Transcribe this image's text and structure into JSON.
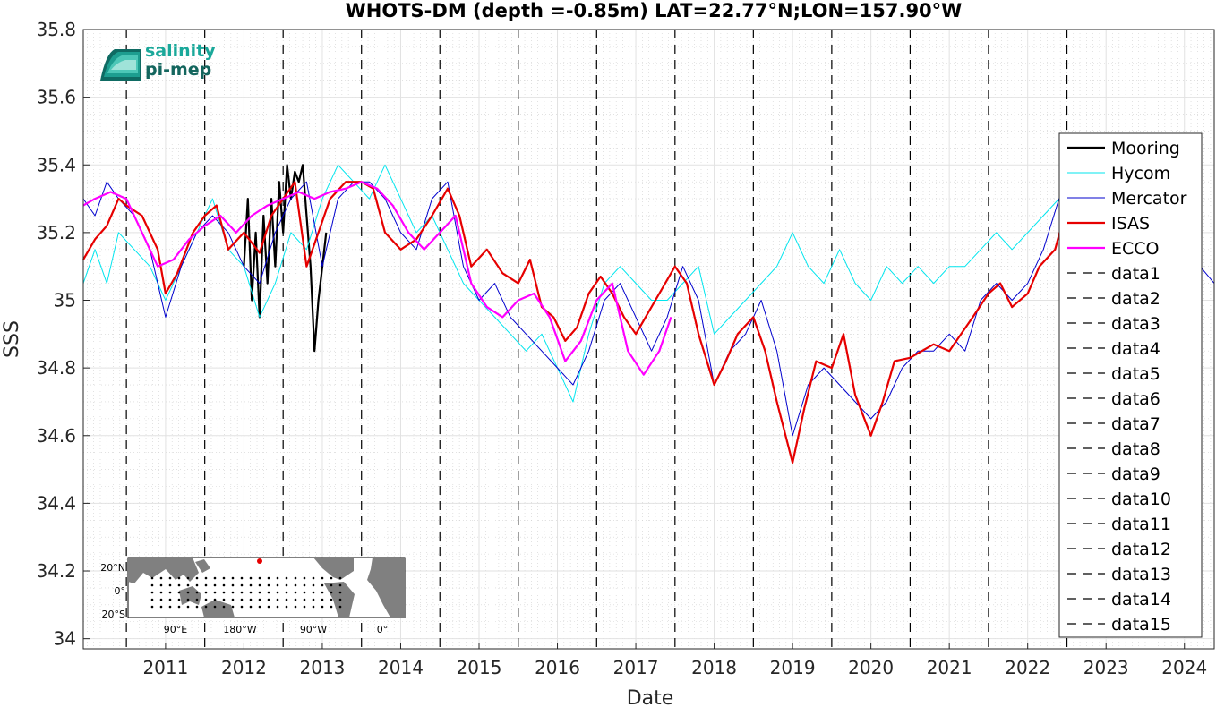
{
  "chart_data": {
    "type": "line",
    "title": "WHOTS-DM (depth =-0.85m) LAT=22.77°N;LON=157.90°W",
    "xlabel": "Date",
    "ylabel": "SSS",
    "xlim": [
      2010.45,
      2024.88
    ],
    "ylim": [
      33.97,
      35.8
    ],
    "yticks": [
      "34",
      "34.2",
      "34.4",
      "34.6",
      "34.8",
      "35",
      "35.2",
      "35.4",
      "35.6",
      "35.8"
    ],
    "xticks": [
      "2011",
      "2012",
      "2013",
      "2014",
      "2015",
      "2016",
      "2017",
      "2018",
      "2019",
      "2020",
      "2021",
      "2022",
      "2023",
      "2024"
    ],
    "grid": true,
    "legend_position": "right",
    "vlines": [
      2011.0,
      2012.0,
      2013.0,
      2014.0,
      2015.0,
      2016.0,
      2017.0,
      2018.0,
      2019.0,
      2020.0,
      2021.0,
      2022.0,
      2023.0,
      2023.0,
      2023.0
    ],
    "series": [
      {
        "name": "Mooring",
        "color": "#000000",
        "width": 2.2,
        "x": [
          2012.5,
          2012.55,
          2012.6,
          2012.65,
          2012.7,
          2012.75,
          2012.8,
          2012.85,
          2012.9,
          2012.95,
          2013.0,
          2013.05,
          2013.1,
          2013.15,
          2013.2,
          2013.25,
          2013.3,
          2013.35,
          2013.4,
          2013.45,
          2013.5,
          2013.55
        ],
        "y": [
          35.1,
          35.3,
          35.0,
          35.2,
          34.95,
          35.25,
          35.05,
          35.3,
          35.1,
          35.35,
          35.2,
          35.4,
          35.3,
          35.38,
          35.35,
          35.4,
          35.25,
          35.1,
          34.85,
          35.0,
          35.1,
          35.2
        ]
      },
      {
        "name": "Hycom",
        "color": "#00e5ee",
        "width": 1,
        "x": [
          2010.45,
          2010.6,
          2010.75,
          2010.9,
          2011.1,
          2011.3,
          2011.5,
          2011.7,
          2011.9,
          2012.1,
          2012.3,
          2012.5,
          2012.7,
          2012.9,
          2013.1,
          2013.3,
          2013.5,
          2013.7,
          2013.9,
          2014.1,
          2014.3,
          2014.5,
          2014.7,
          2014.9,
          2015.1,
          2015.3,
          2015.5,
          2015.7,
          2015.9,
          2016.1,
          2016.3,
          2016.5,
          2016.7,
          2016.9,
          2017.1,
          2017.3,
          2017.5,
          2017.7,
          2017.9,
          2018.1,
          2018.3,
          2018.5,
          2018.7,
          2018.9,
          2019.1,
          2019.3,
          2019.5,
          2019.7,
          2019.9,
          2020.1,
          2020.3,
          2020.5,
          2020.7,
          2020.9,
          2021.1,
          2021.3,
          2021.5,
          2021.7,
          2021.9,
          2022.1,
          2022.3,
          2022.5,
          2022.7,
          2022.9
        ],
        "y": [
          35.05,
          35.15,
          35.05,
          35.2,
          35.15,
          35.1,
          35.0,
          35.1,
          35.2,
          35.3,
          35.15,
          35.1,
          34.95,
          35.05,
          35.2,
          35.15,
          35.3,
          35.4,
          35.35,
          35.3,
          35.4,
          35.3,
          35.2,
          35.25,
          35.15,
          35.05,
          35.0,
          34.95,
          34.9,
          34.85,
          34.9,
          34.8,
          34.7,
          34.9,
          35.05,
          35.1,
          35.05,
          35.0,
          35.0,
          35.05,
          35.1,
          34.9,
          34.95,
          35.0,
          35.05,
          35.1,
          35.2,
          35.1,
          35.05,
          35.15,
          35.05,
          35.0,
          35.1,
          35.05,
          35.1,
          35.05,
          35.1,
          35.1,
          35.15,
          35.2,
          35.15,
          35.2,
          35.25,
          35.3
        ]
      },
      {
        "name": "Mercator",
        "color": "#0000cd",
        "width": 1,
        "x": [
          2010.45,
          2010.6,
          2010.75,
          2010.9,
          2011.1,
          2011.3,
          2011.5,
          2011.7,
          2011.9,
          2012.1,
          2012.3,
          2012.5,
          2012.7,
          2012.9,
          2013.1,
          2013.3,
          2013.5,
          2013.7,
          2013.9,
          2014.1,
          2014.3,
          2014.5,
          2014.7,
          2014.9,
          2015.1,
          2015.3,
          2015.5,
          2015.7,
          2015.9,
          2016.1,
          2016.3,
          2016.5,
          2016.7,
          2016.9,
          2017.1,
          2017.3,
          2017.5,
          2017.7,
          2017.9,
          2018.1,
          2018.3,
          2018.5,
          2018.7,
          2018.9,
          2019.1,
          2019.3,
          2019.5,
          2019.7,
          2019.9,
          2020.1,
          2020.3,
          2020.5,
          2020.7,
          2020.9,
          2021.1,
          2021.3,
          2021.5,
          2021.7,
          2021.9,
          2022.1,
          2022.3,
          2022.5,
          2022.7,
          2022.9,
          2023.1,
          2023.3,
          2023.5,
          2023.7,
          2023.9,
          2024.1,
          2024.3,
          2024.5,
          2024.7,
          2024.88
        ],
        "y": [
          35.3,
          35.25,
          35.35,
          35.3,
          35.25,
          35.15,
          34.95,
          35.1,
          35.2,
          35.25,
          35.2,
          35.1,
          35.05,
          35.2,
          35.3,
          35.35,
          35.1,
          35.3,
          35.35,
          35.35,
          35.3,
          35.2,
          35.15,
          35.3,
          35.35,
          35.1,
          35.0,
          35.05,
          34.95,
          34.9,
          34.85,
          34.8,
          34.75,
          34.85,
          35.0,
          35.05,
          34.95,
          34.85,
          34.95,
          35.1,
          35.0,
          34.75,
          34.85,
          34.9,
          35.0,
          34.85,
          34.6,
          34.75,
          34.8,
          34.75,
          34.7,
          34.65,
          34.7,
          34.8,
          34.85,
          34.85,
          34.9,
          34.85,
          35.0,
          35.05,
          35.0,
          35.05,
          35.15,
          35.3,
          35.4,
          35.3,
          35.2,
          35.1,
          35.15,
          35.2,
          35.25,
          35.2,
          35.1,
          35.05
        ]
      },
      {
        "name": "ISAS",
        "color": "#e60000",
        "width": 2.2,
        "x": [
          2010.45,
          2010.6,
          2010.75,
          2010.9,
          2011.0,
          2011.2,
          2011.4,
          2011.5,
          2011.65,
          2011.85,
          2012.0,
          2012.15,
          2012.3,
          2012.5,
          2012.7,
          2012.85,
          2013.0,
          2013.15,
          2013.3,
          2013.45,
          2013.6,
          2013.8,
          2014.0,
          2014.15,
          2014.3,
          2014.5,
          2014.7,
          2014.9,
          2015.1,
          2015.25,
          2015.4,
          2015.6,
          2015.8,
          2016.0,
          2016.15,
          2016.3,
          2016.45,
          2016.6,
          2016.75,
          2016.9,
          2017.05,
          2017.2,
          2017.35,
          2017.5,
          2017.65,
          2017.8,
          2018.0,
          2018.15,
          2018.3,
          2018.5,
          2018.65,
          2018.8,
          2019.0,
          2019.15,
          2019.3,
          2019.5,
          2019.65,
          2019.8,
          2020.0,
          2020.15,
          2020.3,
          2020.5,
          2020.65,
          2020.8,
          2021.0,
          2021.15,
          2021.3,
          2021.5,
          2021.65,
          2021.8,
          2022.0,
          2022.15,
          2022.3,
          2022.5,
          2022.65,
          2022.85,
          2023.0
        ],
        "y": [
          35.12,
          35.18,
          35.22,
          35.3,
          35.28,
          35.25,
          35.15,
          35.02,
          35.08,
          35.2,
          35.25,
          35.28,
          35.15,
          35.2,
          35.14,
          35.25,
          35.3,
          35.35,
          35.1,
          35.2,
          35.3,
          35.35,
          35.35,
          35.33,
          35.2,
          35.15,
          35.18,
          35.25,
          35.33,
          35.25,
          35.1,
          35.15,
          35.08,
          35.05,
          35.12,
          34.98,
          34.95,
          34.88,
          34.92,
          35.02,
          35.07,
          35.02,
          34.95,
          34.9,
          34.96,
          35.02,
          35.1,
          35.05,
          34.9,
          34.75,
          34.82,
          34.9,
          34.95,
          34.85,
          34.7,
          34.52,
          34.68,
          34.82,
          34.8,
          34.9,
          34.72,
          34.6,
          34.7,
          34.82,
          34.83,
          34.85,
          34.87,
          34.85,
          34.9,
          34.95,
          35.02,
          35.05,
          34.98,
          35.02,
          35.1,
          35.15,
          35.28
        ]
      },
      {
        "name": "ECCO",
        "color": "#ff00ff",
        "width": 2.2,
        "x": [
          2010.45,
          2010.6,
          2010.8,
          2011.0,
          2011.2,
          2011.4,
          2011.6,
          2011.8,
          2012.0,
          2012.2,
          2012.4,
          2012.6,
          2012.8,
          2013.0,
          2013.2,
          2013.4,
          2013.6,
          2013.8,
          2014.0,
          2014.2,
          2014.4,
          2014.6,
          2014.8,
          2015.0,
          2015.2,
          2015.4,
          2015.6,
          2015.8,
          2016.0,
          2016.2,
          2016.4,
          2016.6,
          2016.8,
          2017.0,
          2017.2,
          2017.4,
          2017.6,
          2017.8,
          2017.95
        ],
        "y": [
          35.28,
          35.3,
          35.32,
          35.3,
          35.2,
          35.1,
          35.12,
          35.18,
          35.22,
          35.25,
          35.2,
          35.25,
          35.28,
          35.3,
          35.32,
          35.3,
          35.32,
          35.33,
          35.35,
          35.33,
          35.28,
          35.2,
          35.15,
          35.2,
          35.25,
          35.05,
          34.98,
          34.95,
          35.0,
          35.02,
          34.95,
          34.82,
          34.88,
          35.0,
          35.05,
          34.85,
          34.78,
          34.85,
          34.95
        ]
      },
      {
        "name": "data1",
        "color": "#000000",
        "width": 1.2,
        "dash": true
      },
      {
        "name": "data2",
        "color": "#000000",
        "width": 1.2,
        "dash": true
      },
      {
        "name": "data3",
        "color": "#000000",
        "width": 1.2,
        "dash": true
      },
      {
        "name": "data4",
        "color": "#000000",
        "width": 1.2,
        "dash": true
      },
      {
        "name": "data5",
        "color": "#000000",
        "width": 1.2,
        "dash": true
      },
      {
        "name": "data6",
        "color": "#000000",
        "width": 1.2,
        "dash": true
      },
      {
        "name": "data7",
        "color": "#000000",
        "width": 1.2,
        "dash": true
      },
      {
        "name": "data8",
        "color": "#000000",
        "width": 1.2,
        "dash": true
      },
      {
        "name": "data9",
        "color": "#000000",
        "width": 1.2,
        "dash": true
      },
      {
        "name": "data10",
        "color": "#000000",
        "width": 1.2,
        "dash": true
      },
      {
        "name": "data11",
        "color": "#000000",
        "width": 1.2,
        "dash": true
      },
      {
        "name": "data12",
        "color": "#000000",
        "width": 1.2,
        "dash": true
      },
      {
        "name": "data13",
        "color": "#000000",
        "width": 1.2,
        "dash": true
      },
      {
        "name": "data14",
        "color": "#000000",
        "width": 1.2,
        "dash": true
      },
      {
        "name": "data15",
        "color": "#000000",
        "width": 1.2,
        "dash": true
      }
    ]
  },
  "logo": {
    "line1": "salinity",
    "line2": "pi-mep"
  },
  "inset_map": {
    "ylabels": [
      "20°N",
      "0°",
      "20°S"
    ],
    "xlabels": [
      "90°E",
      "180°W",
      "90°W",
      "0°"
    ]
  }
}
